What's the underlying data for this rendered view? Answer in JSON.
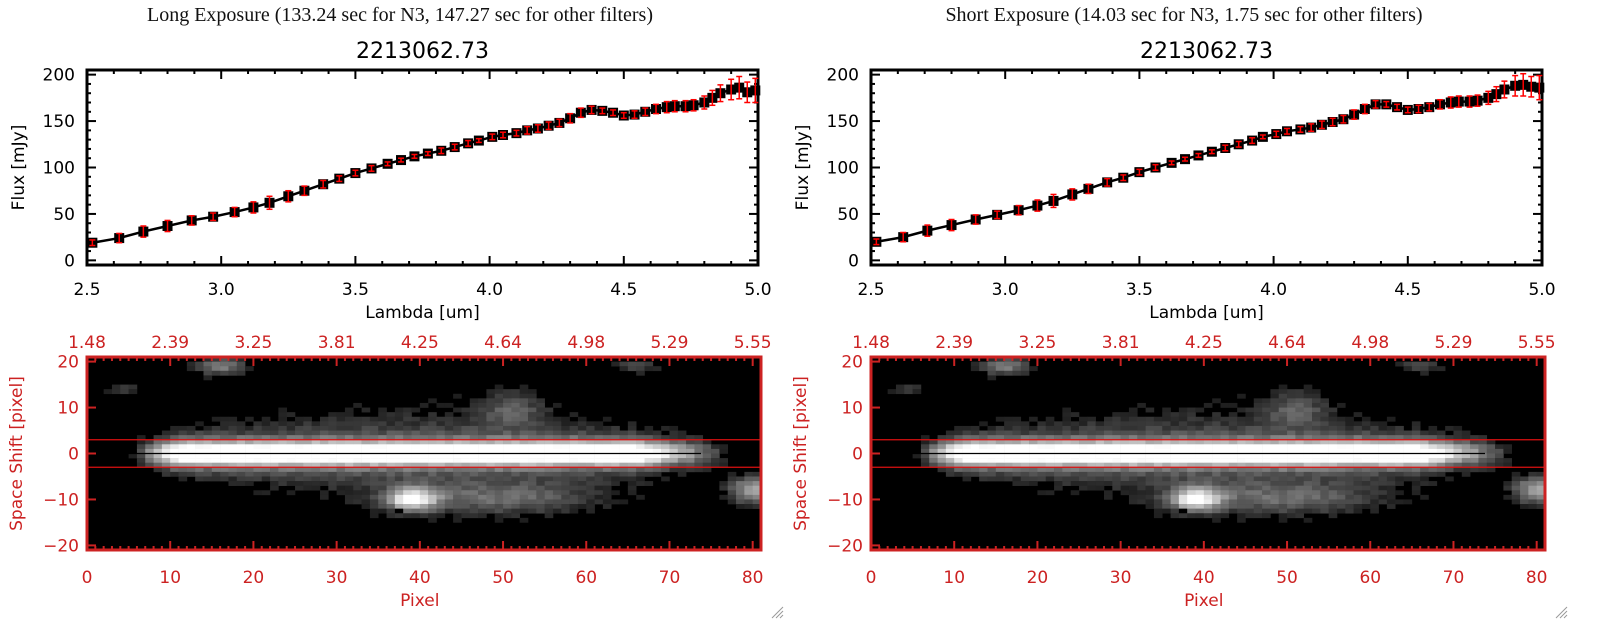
{
  "panels": [
    {
      "id": "long",
      "title": "Long Exposure (133.24 sec for N3, 147.27 sec for other filters)",
      "spectrum": {
        "title": "2213062.73",
        "xlabel": "Lambda [um]",
        "ylabel": "Flux [mJy]"
      },
      "image": {
        "xlabel": "Pixel",
        "ylabel": "Space Shift [pixel]"
      }
    },
    {
      "id": "short",
      "title": "Short Exposure (14.03 sec for N3, 1.75 sec for other filters)",
      "spectrum": {
        "title": "2213062.73",
        "xlabel": "Lambda [um]",
        "ylabel": "Flux [mJy]"
      },
      "image": {
        "xlabel": "Pixel",
        "ylabel": "Space Shift [pixel]"
      }
    }
  ],
  "colors": {
    "axis_black": "#000000",
    "error_bar": "#ff0000",
    "image_axis": "#cc2222",
    "aperture_line": "#dd1111",
    "center_line": "#000000"
  },
  "chart_data": [
    {
      "type": "scatter",
      "panel": "long",
      "title": "2213062.73",
      "xlabel": "Lambda [um]",
      "ylabel": "Flux [mJy]",
      "xlim": [
        2.5,
        5.0
      ],
      "ylim": [
        -5,
        205
      ],
      "xticks": [
        "2.5",
        "3.0",
        "3.5",
        "4.0",
        "4.5",
        "5.0"
      ],
      "xtick_values": [
        2.5,
        3.0,
        3.5,
        4.0,
        4.5,
        5.0
      ],
      "yticks": [
        "0",
        "50",
        "100",
        "150",
        "200"
      ],
      "ytick_values": [
        0,
        50,
        100,
        150,
        200
      ],
      "series": [
        {
          "name": "flux",
          "x": [
            2.52,
            2.62,
            2.71,
            2.8,
            2.89,
            2.97,
            3.05,
            3.12,
            3.18,
            3.25,
            3.31,
            3.38,
            3.44,
            3.5,
            3.56,
            3.62,
            3.67,
            3.72,
            3.77,
            3.82,
            3.87,
            3.92,
            3.96,
            4.01,
            4.05,
            4.1,
            4.14,
            4.18,
            4.22,
            4.26,
            4.3,
            4.34,
            4.38,
            4.42,
            4.46,
            4.5,
            4.54,
            4.58,
            4.62,
            4.66,
            4.69,
            4.73,
            4.76,
            4.8,
            4.83,
            4.86,
            4.9,
            4.93,
            4.96,
            4.99
          ],
          "y": [
            19,
            24,
            31,
            37,
            43,
            47,
            52,
            57,
            62,
            69,
            75,
            82,
            88,
            94,
            99,
            104,
            108,
            112,
            115,
            118,
            122,
            126,
            129,
            133,
            135,
            137,
            140,
            142,
            145,
            148,
            153,
            159,
            162,
            161,
            159,
            156,
            157,
            160,
            163,
            165,
            166,
            166,
            167,
            170,
            175,
            180,
            184,
            186,
            181,
            183
          ],
          "err": [
            3,
            5,
            6,
            6,
            5,
            4,
            5,
            6,
            7,
            6,
            5,
            4,
            3,
            3,
            3,
            2,
            2,
            2,
            2,
            3,
            3,
            3,
            2,
            3,
            3,
            3,
            4,
            4,
            4,
            4,
            5,
            5,
            4,
            3,
            3,
            3,
            4,
            4,
            5,
            6,
            6,
            6,
            6,
            7,
            8,
            9,
            11,
            12,
            11,
            13
          ]
        }
      ]
    },
    {
      "type": "heatmap",
      "panel": "long",
      "xlabel": "Pixel",
      "ylabel": "Space Shift [pixel]",
      "xlim": [
        0,
        81
      ],
      "ylim": [
        -21,
        21
      ],
      "xticks": [
        "0",
        "10",
        "20",
        "30",
        "40",
        "50",
        "60",
        "70",
        "80"
      ],
      "xtick_values": [
        0,
        10,
        20,
        30,
        40,
        50,
        60,
        70,
        80
      ],
      "top_xticks": [
        "1.48",
        "2.39",
        "3.25",
        "3.81",
        "4.25",
        "4.64",
        "4.98",
        "5.29",
        "5.55"
      ],
      "yticks": [
        "20",
        "10",
        "0",
        "-10",
        "-20"
      ],
      "ytick_values": [
        20,
        10,
        0,
        -10,
        -20
      ],
      "aperture_lines": [
        3,
        -3
      ],
      "center_line": 0
    },
    {
      "type": "scatter",
      "panel": "short",
      "title": "2213062.73",
      "xlabel": "Lambda [um]",
      "ylabel": "Flux [mJy]",
      "xlim": [
        2.5,
        5.0
      ],
      "ylim": [
        -5,
        205
      ],
      "xticks": [
        "2.5",
        "3.0",
        "3.5",
        "4.0",
        "4.5",
        "5.0"
      ],
      "xtick_values": [
        2.5,
        3.0,
        3.5,
        4.0,
        4.5,
        5.0
      ],
      "yticks": [
        "0",
        "50",
        "100",
        "150",
        "200"
      ],
      "ytick_values": [
        0,
        50,
        100,
        150,
        200
      ],
      "series": [
        {
          "name": "flux",
          "x": [
            2.52,
            2.62,
            2.71,
            2.8,
            2.89,
            2.97,
            3.05,
            3.12,
            3.18,
            3.25,
            3.31,
            3.38,
            3.44,
            3.5,
            3.56,
            3.62,
            3.67,
            3.72,
            3.77,
            3.82,
            3.87,
            3.92,
            3.96,
            4.01,
            4.05,
            4.1,
            4.14,
            4.18,
            4.22,
            4.26,
            4.3,
            4.34,
            4.38,
            4.42,
            4.46,
            4.5,
            4.54,
            4.58,
            4.62,
            4.66,
            4.69,
            4.73,
            4.76,
            4.8,
            4.83,
            4.86,
            4.9,
            4.93,
            4.96,
            4.99
          ],
          "y": [
            20,
            25,
            32,
            38,
            44,
            49,
            54,
            59,
            64,
            71,
            77,
            84,
            89,
            95,
            100,
            105,
            109,
            113,
            117,
            121,
            125,
            129,
            133,
            136,
            139,
            141,
            143,
            146,
            149,
            152,
            157,
            163,
            168,
            168,
            165,
            162,
            163,
            165,
            168,
            170,
            171,
            171,
            172,
            175,
            179,
            184,
            188,
            189,
            187,
            186
          ],
          "err": [
            3,
            5,
            6,
            6,
            5,
            4,
            5,
            6,
            7,
            6,
            5,
            4,
            3,
            3,
            3,
            2,
            2,
            2,
            2,
            3,
            3,
            3,
            2,
            3,
            3,
            3,
            4,
            4,
            4,
            4,
            5,
            5,
            4,
            3,
            3,
            3,
            4,
            4,
            5,
            6,
            6,
            6,
            6,
            7,
            8,
            9,
            11,
            12,
            11,
            13
          ]
        }
      ]
    },
    {
      "type": "heatmap",
      "panel": "short",
      "xlabel": "Pixel",
      "ylabel": "Space Shift [pixel]",
      "xlim": [
        0,
        81
      ],
      "ylim": [
        -21,
        21
      ],
      "xticks": [
        "0",
        "10",
        "20",
        "30",
        "40",
        "50",
        "60",
        "70",
        "80"
      ],
      "xtick_values": [
        0,
        10,
        20,
        30,
        40,
        50,
        60,
        70,
        80
      ],
      "top_xticks": [
        "1.48",
        "2.39",
        "3.25",
        "3.81",
        "4.25",
        "4.64",
        "4.98",
        "5.29",
        "5.55"
      ],
      "yticks": [
        "20",
        "10",
        "0",
        "-10",
        "-20"
      ],
      "ytick_values": [
        20,
        10,
        0,
        -10,
        -20
      ],
      "aperture_lines": [
        3,
        -3
      ],
      "center_line": 0
    }
  ]
}
